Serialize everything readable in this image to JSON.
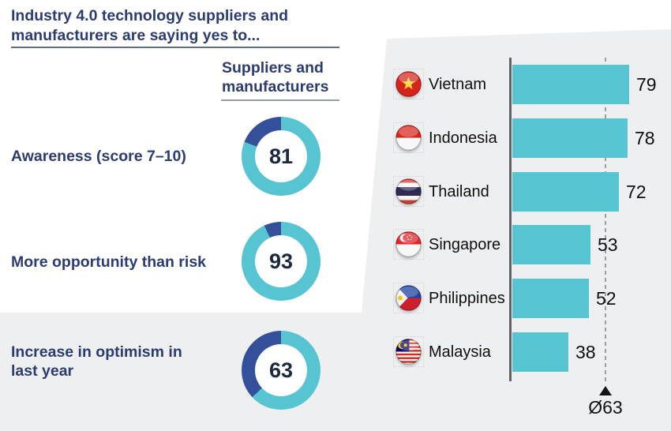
{
  "header": {
    "title_line1": "Industry 4.0 technology suppliers and",
    "title_line2": "manufacturers are saying yes to...",
    "column_header_line1": "Suppliers and",
    "column_header_line2": "manufacturers"
  },
  "colors": {
    "teal": "#57c4d1",
    "dark_blue": "#34509a",
    "navy_text": "#2b3c71",
    "donut_number": "#1c2840",
    "panel_gray": "#eeeff1",
    "axis_gray": "#5f6367",
    "black_text": "#0f0f0f"
  },
  "icons": {
    "flags": [
      "vietnam-flag-icon",
      "indonesia-flag-icon",
      "thailand-flag-icon",
      "singapore-flag-icon",
      "philippines-flag-icon",
      "malaysia-flag-icon"
    ]
  },
  "chart_data": [
    {
      "type": "pie",
      "style": "donut",
      "group_label": "Suppliers and manufacturers",
      "items": [
        {
          "label": "Awareness (score 7–10)",
          "value": 81
        },
        {
          "label": "More opportunity than risk",
          "value": 93
        },
        {
          "label": "Increase in optimism in last year",
          "value": 63
        }
      ],
      "filled_color": "#57c4d1",
      "remainder_color": "#34509a",
      "value_range": [
        0,
        100
      ]
    },
    {
      "type": "bar",
      "orientation": "horizontal",
      "categories": [
        "Vietnam",
        "Indonesia",
        "Thailand",
        "Singapore",
        "Philippines",
        "Malaysia"
      ],
      "values": [
        79,
        78,
        72,
        53,
        52,
        38
      ],
      "bar_color": "#57c4d1",
      "average": {
        "label": "Ø63",
        "value": 63
      },
      "xlim": [
        0,
        100
      ],
      "grid": "dashed vertical average line"
    }
  ]
}
